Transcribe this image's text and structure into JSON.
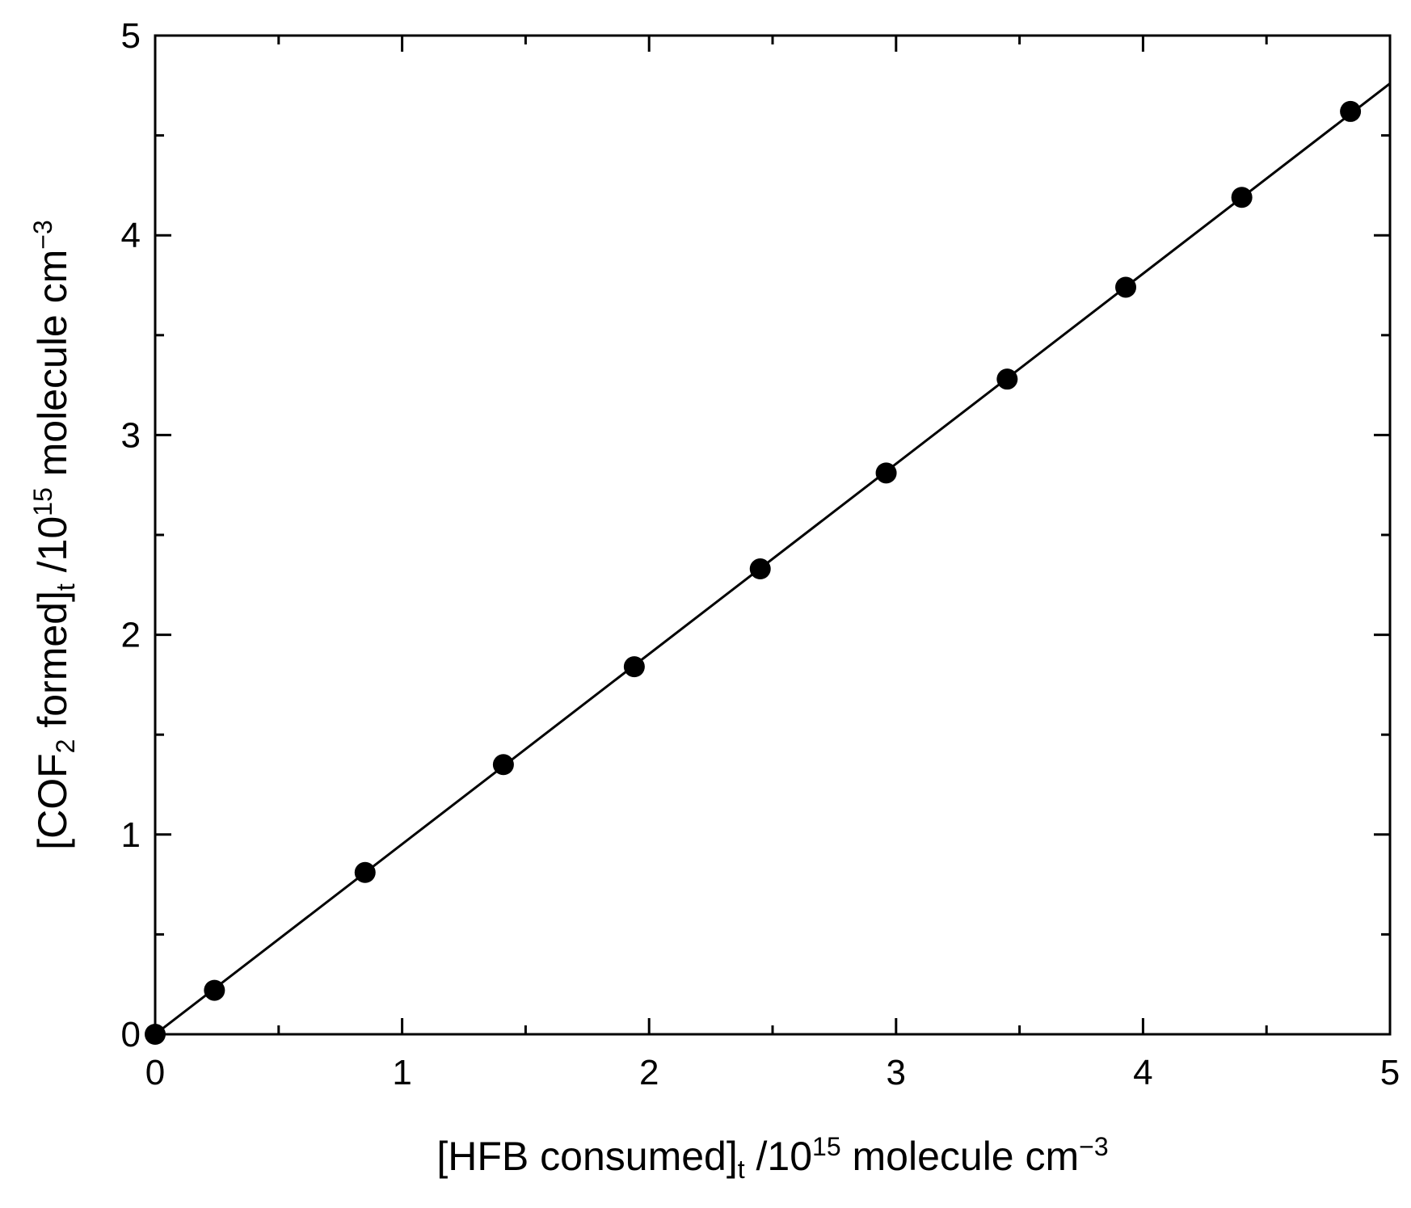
{
  "chart_data": {
    "type": "scatter",
    "title": "",
    "xlabel": {
      "parts": [
        {
          "text": "[HFB consumed]",
          "style": "normal"
        },
        {
          "text": "t",
          "style": "sub"
        },
        {
          "text": " /10",
          "style": "normal"
        },
        {
          "text": "15",
          "style": "sup"
        },
        {
          "text": " molecule cm",
          "style": "normal"
        },
        {
          "text": "−3",
          "style": "sup"
        }
      ]
    },
    "ylabel": {
      "parts": [
        {
          "text": "[COF",
          "style": "normal"
        },
        {
          "text": "2",
          "style": "sub"
        },
        {
          "text": " formed]",
          "style": "normal"
        },
        {
          "text": "t",
          "style": "sub"
        },
        {
          "text": " /10",
          "style": "normal"
        },
        {
          "text": "15",
          "style": "sup"
        },
        {
          "text": " molecule cm",
          "style": "normal"
        },
        {
          "text": "−3",
          "style": "sup"
        }
      ]
    },
    "xlim": [
      0,
      5
    ],
    "ylim": [
      0,
      5
    ],
    "x_ticks_major": [
      0,
      1,
      2,
      3,
      4,
      5
    ],
    "x_tick_labels": [
      "0",
      "1",
      "2",
      "3",
      "4",
      "5"
    ],
    "y_ticks_major": [
      0,
      1,
      2,
      3,
      4,
      5
    ],
    "y_tick_labels": [
      "0",
      "1",
      "2",
      "3",
      "4",
      "5"
    ],
    "minor_tick_step": 0.5,
    "grid": false,
    "legend": "none",
    "series": [
      {
        "marker": "filled-circle",
        "color": "#000000",
        "points": [
          {
            "x": 0.0,
            "y": 0.0
          },
          {
            "x": 0.24,
            "y": 0.22
          },
          {
            "x": 0.85,
            "y": 0.81
          },
          {
            "x": 1.41,
            "y": 1.35
          },
          {
            "x": 1.94,
            "y": 1.84
          },
          {
            "x": 2.45,
            "y": 2.33
          },
          {
            "x": 2.96,
            "y": 2.81
          },
          {
            "x": 3.45,
            "y": 3.28
          },
          {
            "x": 3.93,
            "y": 3.74
          },
          {
            "x": 4.4,
            "y": 4.19
          },
          {
            "x": 4.84,
            "y": 4.62
          }
        ]
      }
    ],
    "fit_line": {
      "color": "#000000",
      "x": [
        0,
        5
      ],
      "y": [
        0,
        4.76
      ]
    }
  }
}
